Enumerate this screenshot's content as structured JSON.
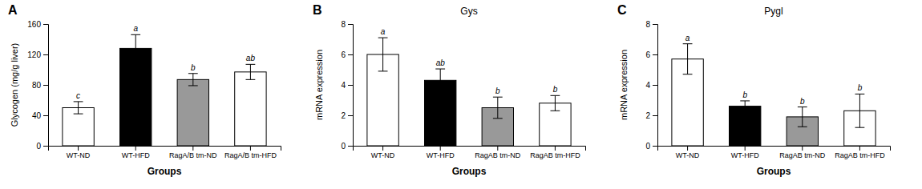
{
  "chart_data": [
    {
      "type": "bar",
      "panel_label": "A",
      "categories": [
        "WT-ND",
        "WT-HFD",
        "RagA/B tm-ND",
        "RagA/B tm-HFD"
      ],
      "values": [
        50,
        128,
        87,
        97
      ],
      "errors": [
        8,
        18,
        8,
        10
      ],
      "sig_labels": [
        "c",
        "a",
        "b",
        "ab"
      ],
      "ylabel": "Glycogen (mg/g liver)",
      "xlabel": "Groups",
      "ylim": [
        0,
        160
      ],
      "yticks": [
        0,
        40,
        80,
        120,
        160
      ],
      "colors": [
        "#ffffff",
        "#000000",
        "#999999",
        "#ffffff"
      ],
      "grid": false
    },
    {
      "type": "bar",
      "title": "Gys",
      "panel_label": "B",
      "categories": [
        "WT-ND",
        "WT-HFD",
        "RagAB tm-ND",
        "RagAB tm-HFD"
      ],
      "values": [
        6.0,
        4.3,
        2.5,
        2.8
      ],
      "errors": [
        1.1,
        0.75,
        0.7,
        0.5
      ],
      "sig_labels": [
        "a",
        "ab",
        "b",
        "b"
      ],
      "ylabel": "mRNA expression",
      "xlabel": "Groups",
      "ylim": [
        0,
        8
      ],
      "yticks": [
        0,
        2,
        4,
        6,
        8
      ],
      "colors": [
        "#ffffff",
        "#000000",
        "#999999",
        "#ffffff"
      ],
      "grid": false
    },
    {
      "type": "bar",
      "title": "Pygl",
      "panel_label": "C",
      "categories": [
        "WT-ND",
        "WT-HFD",
        "RagAB tm-ND",
        "RagAB tm-HFD"
      ],
      "values": [
        5.7,
        2.6,
        1.9,
        2.3
      ],
      "errors": [
        1.0,
        0.35,
        0.65,
        1.1
      ],
      "sig_labels": [
        "a",
        "b",
        "b",
        "b"
      ],
      "ylabel": "mRNA expression",
      "xlabel": "Groups",
      "ylim": [
        0,
        8
      ],
      "yticks": [
        0,
        2,
        4,
        6,
        8
      ],
      "colors": [
        "#ffffff",
        "#000000",
        "#999999",
        "#ffffff"
      ],
      "grid": false
    }
  ]
}
